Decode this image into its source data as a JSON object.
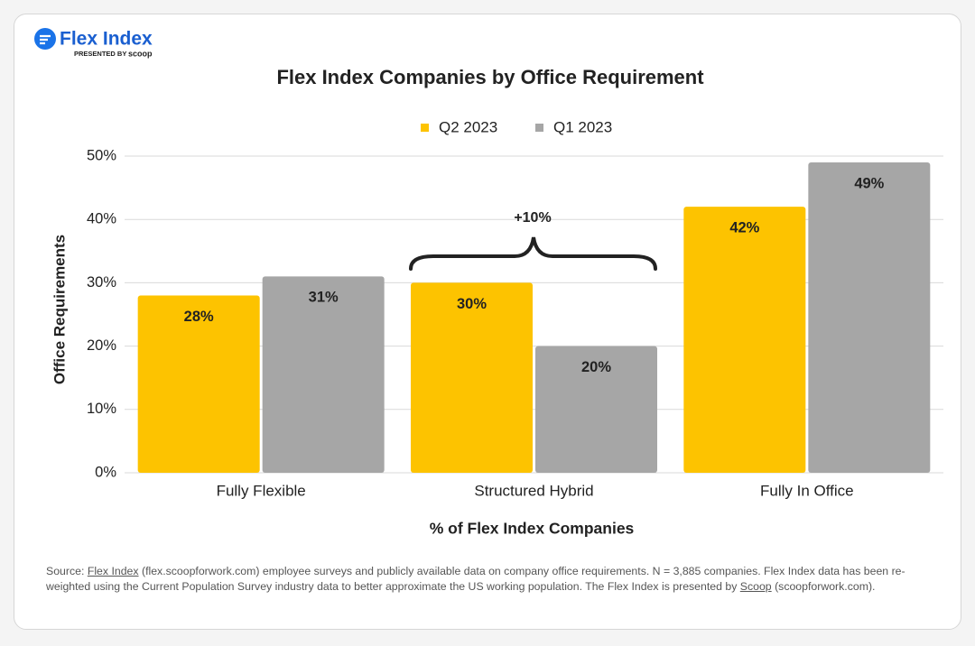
{
  "logo": {
    "name": "Flex Index",
    "presented_by": "PRESENTED BY",
    "brand": "scoop"
  },
  "chart_data": {
    "type": "bar",
    "title": "Flex Index Companies by Office Requirement",
    "categories": [
      "Fully Flexible",
      "Structured Hybrid",
      "Fully In Office"
    ],
    "series": [
      {
        "name": "Q2 2023",
        "color": "#fdc300",
        "values": [
          28,
          30,
          42
        ],
        "value_labels": [
          "28%",
          "30%",
          "42%"
        ]
      },
      {
        "name": "Q1 2023",
        "color": "#a6a6a6",
        "values": [
          31,
          20,
          49
        ],
        "value_labels": [
          "31%",
          "20%",
          "49%"
        ]
      }
    ],
    "ylim": [
      0,
      50
    ],
    "yticks": [
      {
        "value": 0,
        "label": "0%"
      },
      {
        "value": 10,
        "label": "10%"
      },
      {
        "value": 20,
        "label": "20%"
      },
      {
        "value": 30,
        "label": "30%"
      },
      {
        "value": 40,
        "label": "40%"
      },
      {
        "value": 50,
        "label": "50%"
      }
    ],
    "y_label": "Office Requirements",
    "x_label": "% of Flex Index Companies",
    "annotation": "+10%",
    "grid": true,
    "legend": "top"
  },
  "source": {
    "prefix": "Source:",
    "link1": "Flex Index",
    "middle": "(flex.scoopforwork.com) employee surveys and publicly available data on company office requirements. N = 3,885 companies. Flex Index data has been re-weighted using the Current Population Survey industry data to better approximate the US working population. The Flex Index is presented by",
    "link2": "Scoop",
    "suffix": "(scoopforwork.com)."
  }
}
